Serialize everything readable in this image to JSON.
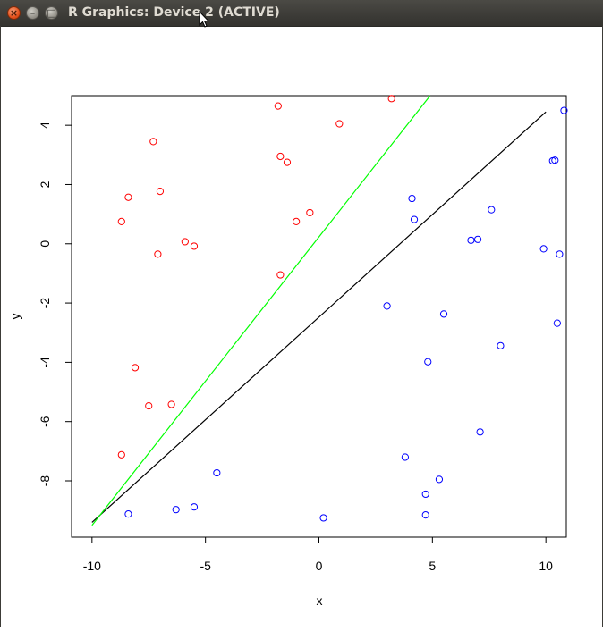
{
  "window": {
    "title": "R Graphics: Device 2 (ACTIVE)",
    "buttons": {
      "close": "×",
      "minimize": "–",
      "maximize": "□"
    }
  },
  "chart_data": {
    "type": "scatter",
    "xlabel": "x",
    "ylabel": "y",
    "xlim": [
      -10.9,
      10.9
    ],
    "ylim": [
      -9.9,
      5.0
    ],
    "x_ticks": [
      -10,
      -5,
      0,
      5,
      10
    ],
    "y_ticks": [
      4,
      2,
      0,
      -2,
      -4,
      -6,
      -8
    ],
    "x_tick_labels": [
      "-10",
      "-5",
      "0",
      "5",
      "10"
    ],
    "y_tick_labels": [
      "4",
      "2",
      "0",
      "-2",
      "-4",
      "-6",
      "-8"
    ],
    "grid": false,
    "series": [
      {
        "color": "#ff0000",
        "marker": "open-circle",
        "points": [
          [
            -1.8,
            4.65
          ],
          [
            3.2,
            4.9
          ],
          [
            0.9,
            4.05
          ],
          [
            -7.3,
            3.45
          ],
          [
            -1.7,
            2.95
          ],
          [
            -1.4,
            2.75
          ],
          [
            -7.0,
            1.77
          ],
          [
            -8.4,
            1.57
          ],
          [
            -0.4,
            1.05
          ],
          [
            -8.7,
            0.75
          ],
          [
            -1.0,
            0.75
          ],
          [
            -5.9,
            0.07
          ],
          [
            -5.5,
            -0.08
          ],
          [
            -7.1,
            -0.35
          ],
          [
            -1.7,
            -1.05
          ],
          [
            -8.1,
            -4.18
          ],
          [
            -6.5,
            -5.42
          ],
          [
            -7.5,
            -5.47
          ],
          [
            -8.7,
            -7.12
          ]
        ]
      },
      {
        "color": "#0000ff",
        "marker": "open-circle",
        "points": [
          [
            10.8,
            4.5
          ],
          [
            10.3,
            2.8
          ],
          [
            10.4,
            2.82
          ],
          [
            4.1,
            1.53
          ],
          [
            7.6,
            1.15
          ],
          [
            4.2,
            0.82
          ],
          [
            6.7,
            0.12
          ],
          [
            7.0,
            0.15
          ],
          [
            9.9,
            -0.17
          ],
          [
            10.6,
            -0.35
          ],
          [
            3.0,
            -2.1
          ],
          [
            5.5,
            -2.37
          ],
          [
            10.5,
            -2.68
          ],
          [
            8.0,
            -3.44
          ],
          [
            4.8,
            -3.98
          ],
          [
            7.1,
            -6.35
          ],
          [
            3.8,
            -7.2
          ],
          [
            -4.5,
            -7.73
          ],
          [
            5.3,
            -7.95
          ],
          [
            4.7,
            -8.45
          ],
          [
            -5.5,
            -8.88
          ],
          [
            -6.3,
            -8.97
          ],
          [
            -8.4,
            -9.12
          ],
          [
            4.7,
            -9.15
          ],
          [
            0.2,
            -9.25
          ]
        ]
      }
    ],
    "lines": [
      {
        "color": "#000000",
        "x": [
          -10,
          10
        ],
        "y": [
          -9.4,
          4.45
        ]
      },
      {
        "color": "#00ff00",
        "x": [
          -10,
          4.9
        ],
        "y": [
          -9.5,
          5.0
        ]
      }
    ]
  }
}
